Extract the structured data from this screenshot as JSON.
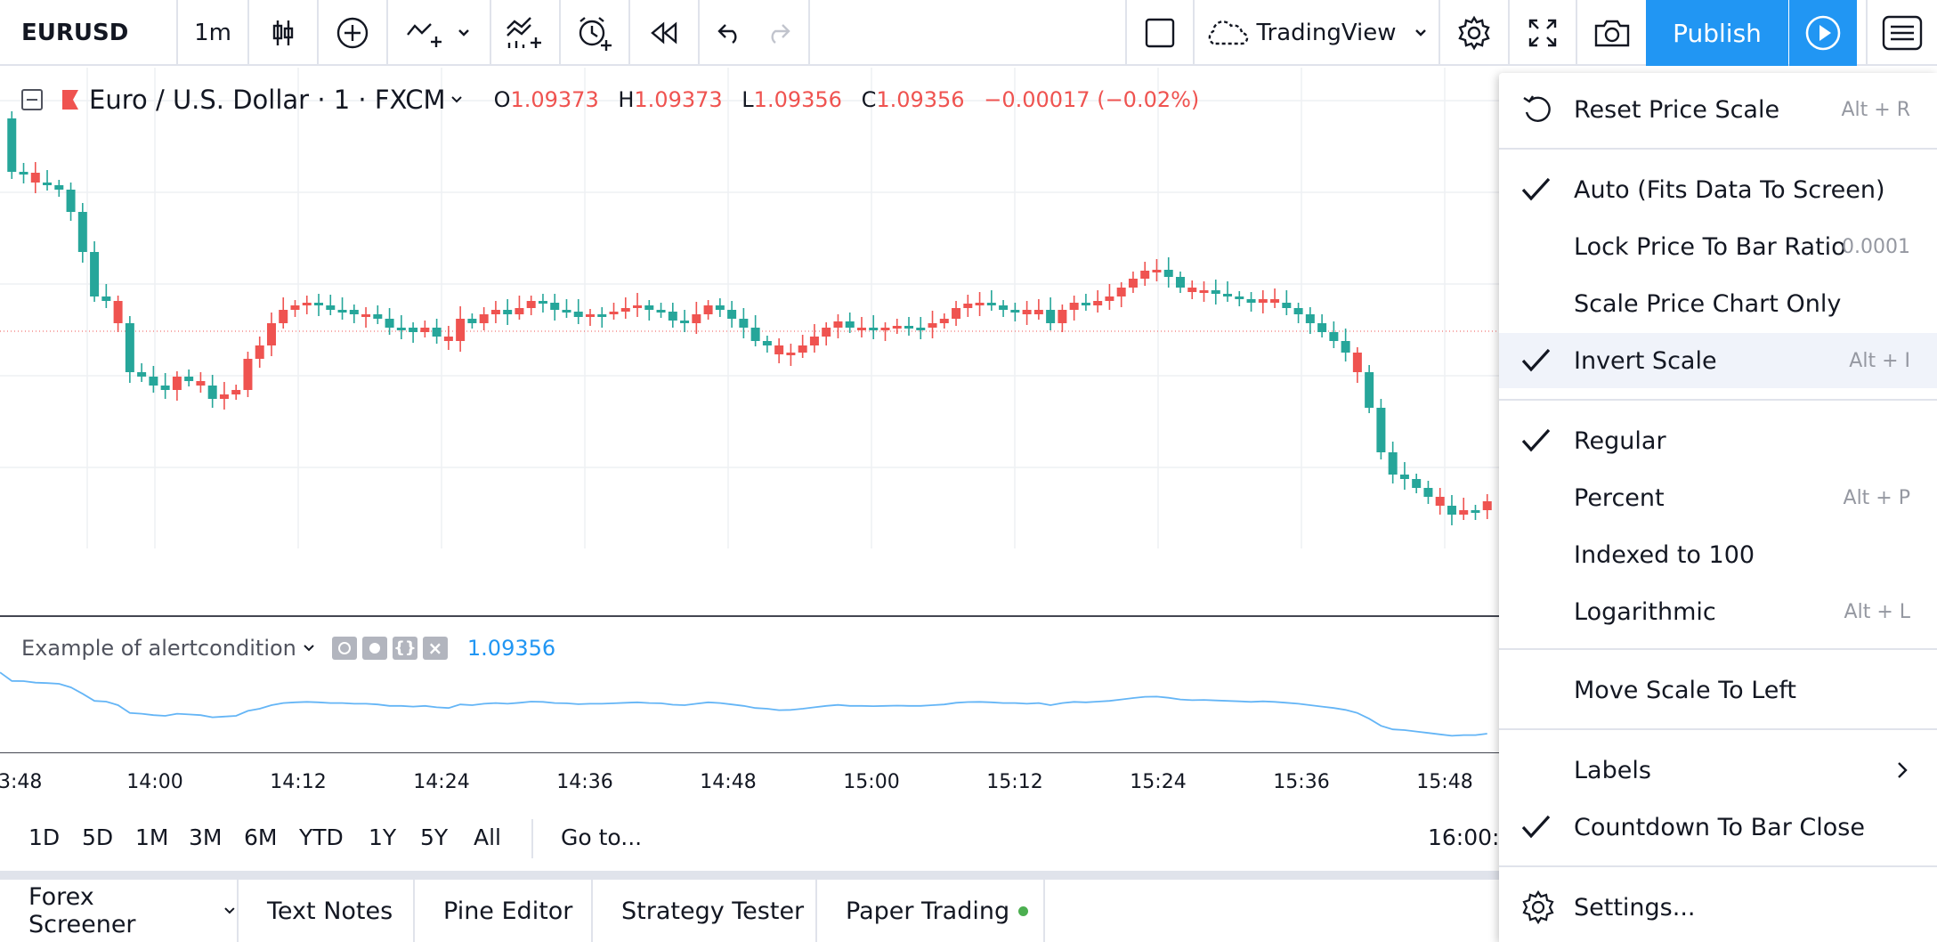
{
  "toolbar": {
    "symbol": "EURUSD",
    "interval": "1m",
    "publish_label": "Publish",
    "cloud_label": "TradingView"
  },
  "legend": {
    "name": "Euro / U.S. Dollar · 1 · FXCM",
    "open_label": "O",
    "open": "1.09373",
    "high_label": "H",
    "high": "1.09373",
    "low_label": "L",
    "low": "1.09356",
    "close_label": "C",
    "close": "1.09356",
    "change": "−0.00017 (−0.02%)"
  },
  "indicator": {
    "name": "Example of alertcondition",
    "value": "1.09356"
  },
  "time_axis": [
    "3:48",
    "14:00",
    "14:12",
    "14:24",
    "14:36",
    "14:48",
    "15:00",
    "15:12",
    "15:24",
    "15:36",
    "15:48",
    "16:00:"
  ],
  "ranges": [
    "1D",
    "5D",
    "1M",
    "3M",
    "6M",
    "YTD",
    "1Y",
    "5Y",
    "All"
  ],
  "goto_label": "Go to...",
  "bottom_tabs": [
    "Forex Screener",
    "Text Notes",
    "Pine Editor",
    "Strategy Tester",
    "Paper Trading"
  ],
  "menu": {
    "reset": {
      "label": "Reset Price Scale",
      "shortcut": "Alt + R"
    },
    "auto": {
      "label": "Auto (Fits Data To Screen)"
    },
    "lock": {
      "label": "Lock Price To Bar Ratio",
      "value": "0.0001"
    },
    "scale_only": {
      "label": "Scale Price Chart Only"
    },
    "invert": {
      "label": "Invert Scale",
      "shortcut": "Alt + I"
    },
    "regular": {
      "label": "Regular"
    },
    "percent": {
      "label": "Percent",
      "shortcut": "Alt + P"
    },
    "indexed": {
      "label": "Indexed to 100"
    },
    "log": {
      "label": "Logarithmic",
      "shortcut": "Alt + L"
    },
    "move_left": {
      "label": "Move Scale To Left"
    },
    "labels": {
      "label": "Labels"
    },
    "countdown": {
      "label": "Countdown To Bar Close"
    },
    "settings": {
      "label": "Settings..."
    }
  },
  "colors": {
    "up": "#26a69a",
    "down": "#ef5350",
    "accent": "#2196f3",
    "indicator_line": "#64b5f6"
  }
}
